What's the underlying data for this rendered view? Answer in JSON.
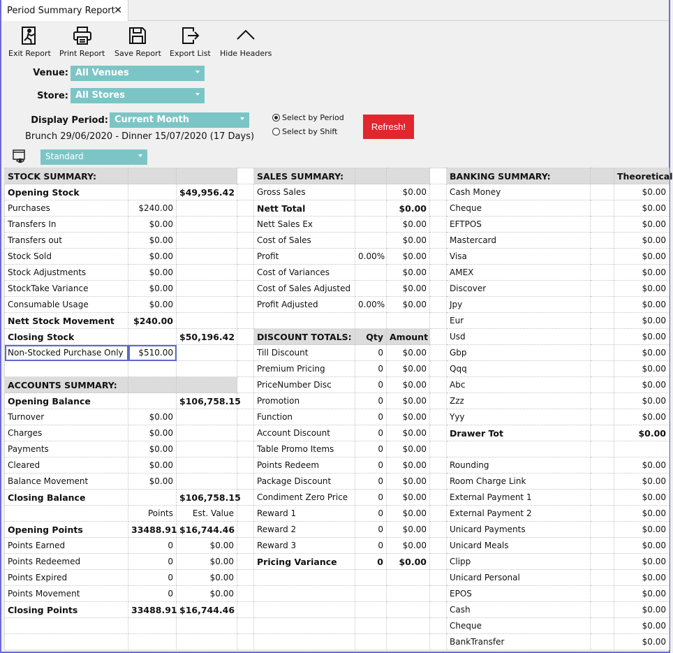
{
  "tab": {
    "title": "Period Summary Report",
    "close": "✕"
  },
  "toolbar": [
    {
      "label": "Exit Report",
      "icon": "exit-icon"
    },
    {
      "label": "Print Report",
      "icon": "printer-icon"
    },
    {
      "label": "Save Report",
      "icon": "save-icon"
    },
    {
      "label": "Export List",
      "icon": "export-icon"
    },
    {
      "label": "Hide Headers",
      "icon": "chevron-up-icon"
    }
  ],
  "filters": {
    "venue_label": "Venue:",
    "venue_value": "All Venues",
    "store_label": "Store:",
    "store_value": "All Stores",
    "period_label": "Display Period:",
    "period_value": "Current Month",
    "period_range": "Brunch 29/06/2020 - Dinner 15/07/2020 (17 Days)",
    "radio_period": "Select by Period",
    "radio_shift": "Select by Shift",
    "refresh": "Refresh!",
    "view_value": "Standard"
  },
  "accent": "#7cc5c6",
  "refresh_color": "#e2262e",
  "rows": [
    [
      "STOCK SUMMARY:",
      "",
      "",
      "",
      "SALES SUMMARY:",
      "",
      "",
      "",
      "BANKING SUMMARY:",
      "",
      "Theoretical"
    ],
    [
      "Opening Stock",
      "",
      "$49,956.42",
      "",
      "Gross Sales",
      "",
      "$0.00",
      "",
      "Cash Money",
      "",
      "$0.00"
    ],
    [
      "Purchases",
      "$240.00",
      "",
      "",
      "Nett Total",
      "",
      "$0.00",
      "",
      "Cheque",
      "",
      "$0.00"
    ],
    [
      "Transfers In",
      "$0.00",
      "",
      "",
      "Nett Sales Ex",
      "",
      "$0.00",
      "",
      "EFTPOS",
      "",
      "$0.00"
    ],
    [
      "Transfers out",
      "$0.00",
      "",
      "",
      "Cost of Sales",
      "",
      "$0.00",
      "",
      "Mastercard",
      "",
      "$0.00"
    ],
    [
      "Stock Sold",
      "$0.00",
      "",
      "",
      "Profit",
      "0.00%",
      "$0.00",
      "",
      "Visa",
      "",
      "$0.00"
    ],
    [
      "Stock Adjustments",
      "$0.00",
      "",
      "",
      "Cost of Variances",
      "",
      "$0.00",
      "",
      "AMEX",
      "",
      "$0.00"
    ],
    [
      "StockTake Variance",
      "$0.00",
      "",
      "",
      "Cost of Sales Adjusted",
      "",
      "$0.00",
      "",
      "Discover",
      "",
      "$0.00"
    ],
    [
      "Consumable Usage",
      "$0.00",
      "",
      "",
      "Profit Adjusted",
      "0.00%",
      "$0.00",
      "",
      "Jpy",
      "",
      "$0.00"
    ],
    [
      "Nett Stock Movement",
      "$240.00",
      "",
      "",
      "",
      "",
      "",
      "",
      "Eur",
      "",
      "$0.00"
    ],
    [
      "Closing Stock",
      "",
      "$50,196.42",
      "",
      "DISCOUNT TOTALS:",
      "Qty",
      "Amount",
      "",
      "Usd",
      "",
      "$0.00"
    ],
    [
      "Non-Stocked Purchase Only",
      "$510.00",
      "",
      "",
      "Till Discount",
      "0",
      "$0.00",
      "",
      "Gbp",
      "",
      "$0.00"
    ],
    [
      "",
      "",
      "",
      "",
      "Premium Pricing",
      "0",
      "$0.00",
      "",
      "Qqq",
      "",
      "$0.00"
    ],
    [
      "ACCOUNTS SUMMARY:",
      "",
      "",
      "",
      "PriceNumber Disc",
      "0",
      "$0.00",
      "",
      "Abc",
      "",
      "$0.00"
    ],
    [
      "Opening Balance",
      "",
      "$106,758.15",
      "",
      "Promotion",
      "0",
      "$0.00",
      "",
      "Zzz",
      "",
      "$0.00"
    ],
    [
      "Turnover",
      "$0.00",
      "",
      "",
      "Function",
      "0",
      "$0.00",
      "",
      "Yyy",
      "",
      "$0.00"
    ],
    [
      "Charges",
      "$0.00",
      "",
      "",
      "Account Discount",
      "0",
      "$0.00",
      "",
      "Drawer Tot",
      "",
      "$0.00"
    ],
    [
      "Payments",
      "$0.00",
      "",
      "",
      "Table Promo Items",
      "0",
      "$0.00",
      "",
      "",
      "",
      ""
    ],
    [
      "Cleared",
      "$0.00",
      "",
      "",
      "Points Redeem",
      "0",
      "$0.00",
      "",
      "Rounding",
      "",
      "$0.00"
    ],
    [
      "Balance Movement",
      "$0.00",
      "",
      "",
      "Package Discount",
      "0",
      "$0.00",
      "",
      "Room Charge Link",
      "",
      "$0.00"
    ],
    [
      "Closing Balance",
      "",
      "$106,758.15",
      "",
      "Condiment Zero Price",
      "0",
      "$0.00",
      "",
      "External Payment 1",
      "",
      "$0.00"
    ],
    [
      "",
      "Points",
      "Est. Value",
      "",
      "Reward 1",
      "0",
      "$0.00",
      "",
      "External Payment 2",
      "",
      "$0.00"
    ],
    [
      "Opening Points",
      "33488.91",
      "$16,744.46",
      "",
      "Reward 2",
      "0",
      "$0.00",
      "",
      "Unicard Payments",
      "",
      "$0.00"
    ],
    [
      "Points Earned",
      "0",
      "$0.00",
      "",
      "Reward 3",
      "0",
      "$0.00",
      "",
      "Unicard Meals",
      "",
      "$0.00"
    ],
    [
      "Points Redeemed",
      "0",
      "$0.00",
      "",
      "Pricing Variance",
      "0",
      "$0.00",
      "",
      "Clipp",
      "",
      "$0.00"
    ],
    [
      "Points Expired",
      "0",
      "$0.00",
      "",
      "",
      "",
      "",
      "",
      "Unicard Personal",
      "",
      "$0.00"
    ],
    [
      "Points Movement",
      "0",
      "$0.00",
      "",
      "",
      "",
      "",
      "",
      "EPOS",
      "",
      "$0.00"
    ],
    [
      "Closing Points",
      "33488.91",
      "$16,744.46",
      "",
      "",
      "",
      "",
      "",
      "Cash",
      "",
      "$0.00"
    ],
    [
      "",
      "",
      "",
      "",
      "",
      "",
      "",
      "",
      "Cheque",
      "",
      "$0.00"
    ],
    [
      "",
      "",
      "",
      "",
      "",
      "",
      "",
      "",
      "BankTransfer",
      "",
      "$0.00"
    ]
  ]
}
